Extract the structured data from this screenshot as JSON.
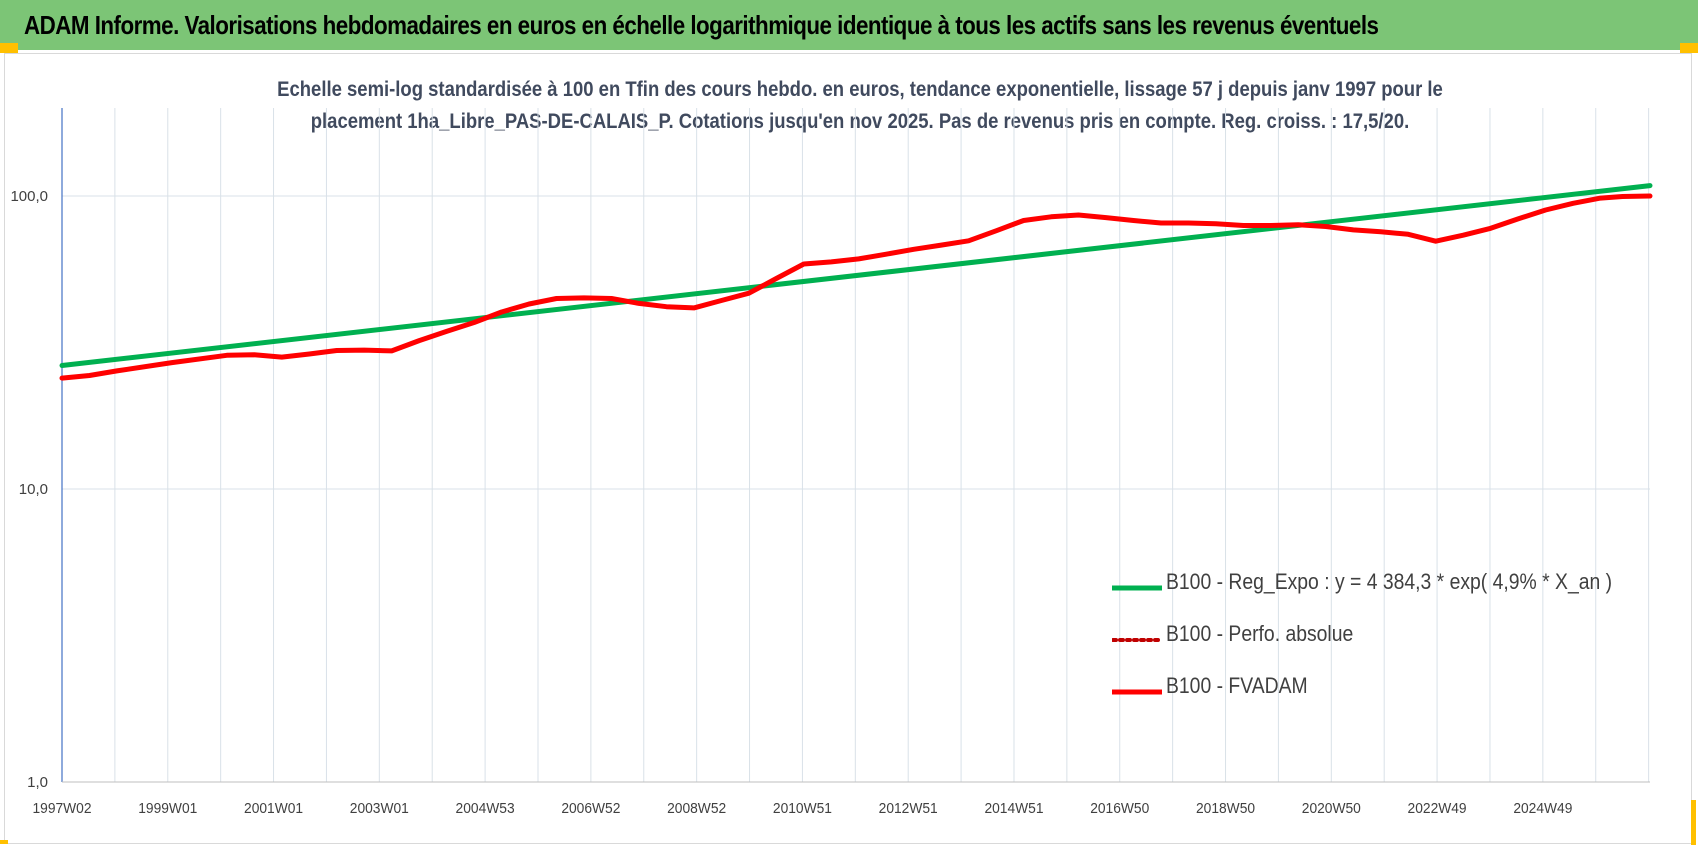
{
  "header": {
    "title": "ADAM Informe. Valorisations hebdomadaires en euros en échelle logarithmique identique à tous les actifs sans les revenus éventuels"
  },
  "colors": {
    "header_bg": "#7cc576",
    "trend": "#00b050",
    "series": "#ff0000",
    "grid": "#d9e1e8",
    "axis": "#4472c4",
    "corner_accent": "#ffc000"
  },
  "chart_data": {
    "type": "line",
    "subtitle_line1": "Echelle semi-log standardisée à 100 en Tfin des cours hebdo. en euros, tendance exponentielle, lissage 57 j depuis janv 1997 pour le",
    "subtitle_line2": "placement 1ha_Libre_PAS-DE-CALAIS_P. Cotations jusqu'en nov 2025. Pas de revenus pris en compte. Reg. croiss. : 17,5/20.",
    "y_scale": "log",
    "ylim": [
      1,
      200
    ],
    "y_ticks": [
      {
        "value": 1,
        "label": "1,0"
      },
      {
        "value": 10,
        "label": "10,0"
      },
      {
        "value": 100,
        "label": "100,0"
      }
    ],
    "x_tick_labels": [
      "1997W02",
      "1999W01",
      "2001W01",
      "2003W01",
      "2004W53",
      "2006W52",
      "2008W52",
      "2010W51",
      "2012W51",
      "2014W51",
      "2016W50",
      "2018W50",
      "2020W50",
      "2022W49",
      "2024W49"
    ],
    "x_range": [
      1997.0,
      2025.9
    ],
    "grid": true,
    "legend_position": "lower-right",
    "legend": [
      {
        "label": "B100 - Reg_Expo : y = 4 384,3 * exp( 4,9% *  X_an )",
        "style": "solid",
        "color": "#00b050"
      },
      {
        "label": "B100 - Perfo. absolue",
        "style": "dotted",
        "color": "#c00000"
      },
      {
        "label": "B100 - FVADAM",
        "style": "solid",
        "color": "#ff0000"
      }
    ],
    "series": [
      {
        "name": "B100 - Reg_Expo : y = 4 384,3 * exp( 4,9% *  X_an )",
        "points": [
          [
            1997.0,
            26.4
          ],
          [
            2025.9,
            108.5
          ]
        ]
      },
      {
        "name": "B100 - Perfo. absolue",
        "points": []
      },
      {
        "name": "B100 - FVADAM",
        "points": [
          [
            1997.0,
            23.9
          ],
          [
            1997.5,
            24.4
          ],
          [
            1998.0,
            25.3
          ],
          [
            1999.0,
            27.0
          ],
          [
            2000.0,
            28.6
          ],
          [
            2000.5,
            28.7
          ],
          [
            2001.0,
            28.2
          ],
          [
            2001.5,
            28.9
          ],
          [
            2002.0,
            29.7
          ],
          [
            2002.5,
            29.8
          ],
          [
            2003.0,
            29.6
          ],
          [
            2003.5,
            32.1
          ],
          [
            2004.0,
            34.5
          ],
          [
            2004.5,
            37.0
          ],
          [
            2005.0,
            40.2
          ],
          [
            2005.5,
            42.8
          ],
          [
            2006.0,
            44.7
          ],
          [
            2006.5,
            44.9
          ],
          [
            2007.0,
            44.7
          ],
          [
            2007.5,
            43.0
          ],
          [
            2008.0,
            41.9
          ],
          [
            2008.5,
            41.5
          ],
          [
            2009.0,
            44.0
          ],
          [
            2009.5,
            46.6
          ],
          [
            2010.0,
            52.3
          ],
          [
            2010.5,
            58.6
          ],
          [
            2011.0,
            59.6
          ],
          [
            2011.5,
            61.0
          ],
          [
            2012.0,
            63.3
          ],
          [
            2012.5,
            65.8
          ],
          [
            2013.0,
            68.0
          ],
          [
            2013.5,
            70.3
          ],
          [
            2014.0,
            76.1
          ],
          [
            2014.5,
            82.5
          ],
          [
            2015.0,
            84.9
          ],
          [
            2015.5,
            86.1
          ],
          [
            2016.0,
            84.4
          ],
          [
            2016.5,
            82.5
          ],
          [
            2017.0,
            80.9
          ],
          [
            2017.5,
            80.9
          ],
          [
            2018.0,
            80.4
          ],
          [
            2018.5,
            79.3
          ],
          [
            2019.0,
            79.3
          ],
          [
            2019.5,
            79.8
          ],
          [
            2020.0,
            78.7
          ],
          [
            2020.5,
            76.6
          ],
          [
            2021.0,
            75.5
          ],
          [
            2021.5,
            74.0
          ],
          [
            2022.0,
            70.1
          ],
          [
            2022.5,
            73.5
          ],
          [
            2023.0,
            77.6
          ],
          [
            2023.5,
            83.5
          ],
          [
            2024.0,
            89.6
          ],
          [
            2024.5,
            94.4
          ],
          [
            2025.0,
            98.4
          ],
          [
            2025.4,
            99.6
          ],
          [
            2025.9,
            100.0
          ]
        ]
      }
    ]
  }
}
